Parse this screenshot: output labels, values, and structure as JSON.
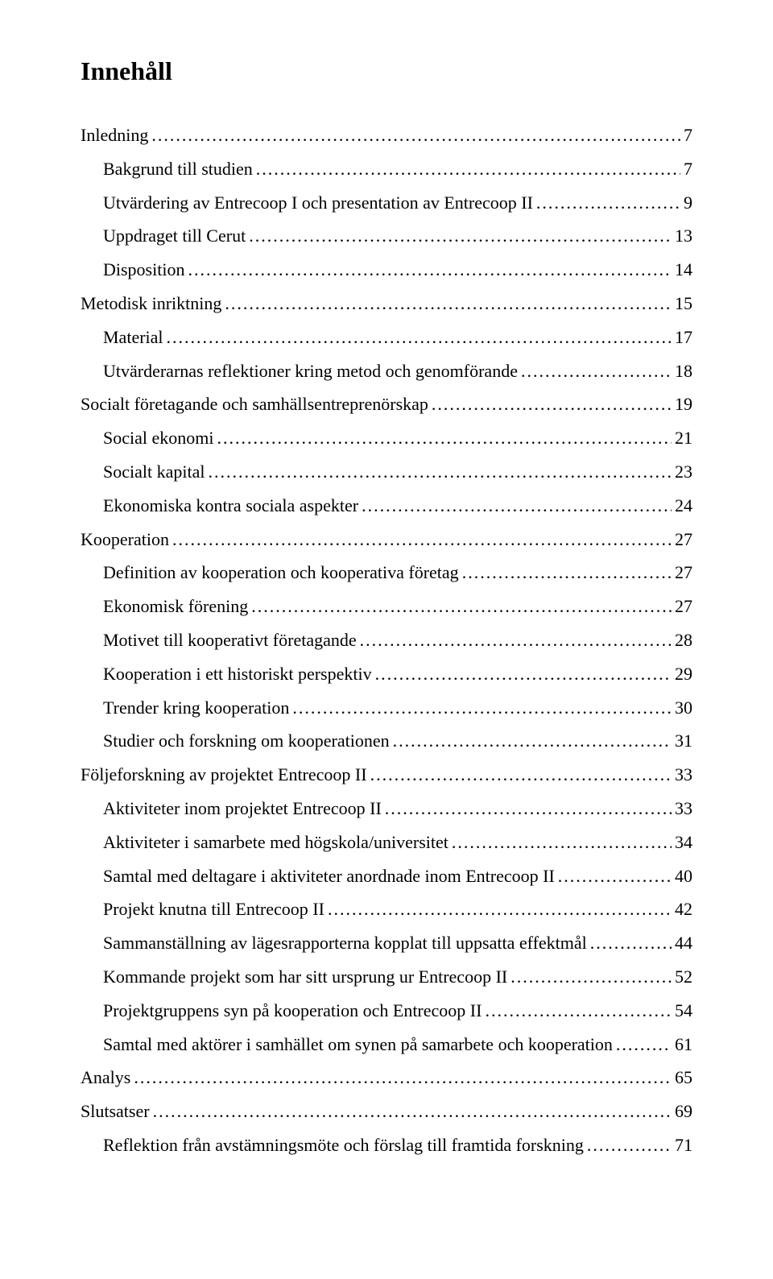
{
  "title": "Innehåll",
  "entries": [
    {
      "level": 0,
      "label": "Inledning",
      "page": "7"
    },
    {
      "level": 1,
      "label": "Bakgrund till studien",
      "page": "7"
    },
    {
      "level": 1,
      "label": "Utvärdering av Entrecoop I och presentation av Entrecoop II",
      "page": "9"
    },
    {
      "level": 1,
      "label": "Uppdraget till Cerut",
      "page": "13"
    },
    {
      "level": 1,
      "label": "Disposition",
      "page": "14"
    },
    {
      "level": 0,
      "label": "Metodisk inriktning",
      "page": "15"
    },
    {
      "level": 1,
      "label": "Material",
      "page": "17"
    },
    {
      "level": 1,
      "label": "Utvärderarnas reflektioner kring metod och genomförande",
      "page": "18"
    },
    {
      "level": 0,
      "label": "Socialt företagande och samhällsentreprenörskap",
      "page": "19"
    },
    {
      "level": 1,
      "label": "Social ekonomi",
      "page": "21"
    },
    {
      "level": 1,
      "label": "Socialt kapital",
      "page": "23"
    },
    {
      "level": 1,
      "label": "Ekonomiska kontra sociala aspekter",
      "page": "24"
    },
    {
      "level": 0,
      "label": "Kooperation",
      "page": "27"
    },
    {
      "level": 1,
      "label": "Definition av kooperation och kooperativa företag",
      "page": "27"
    },
    {
      "level": 1,
      "label": "Ekonomisk förening",
      "page": "27"
    },
    {
      "level": 1,
      "label": "Motivet till kooperativt företagande",
      "page": "28"
    },
    {
      "level": 1,
      "label": "Kooperation i ett historiskt perspektiv",
      "page": "29"
    },
    {
      "level": 1,
      "label": "Trender kring kooperation",
      "page": "30"
    },
    {
      "level": 1,
      "label": "Studier och forskning om kooperationen",
      "page": "31"
    },
    {
      "level": 0,
      "label": "Följeforskning av projektet Entrecoop II",
      "page": "33"
    },
    {
      "level": 1,
      "label": "Aktiviteter inom projektet Entrecoop II",
      "page": "33"
    },
    {
      "level": 1,
      "label": "Aktiviteter i samarbete med högskola/universitet",
      "page": "34"
    },
    {
      "level": 1,
      "label": "Samtal med deltagare i aktiviteter anordnade inom Entrecoop II",
      "page": "40"
    },
    {
      "level": 1,
      "label": "Projekt knutna till Entrecoop II",
      "page": "42"
    },
    {
      "level": 1,
      "label": "Sammanställning av lägesrapporterna kopplat till uppsatta effektmål",
      "page": "44"
    },
    {
      "level": 1,
      "label": "Kommande projekt som har sitt ursprung ur Entrecoop II",
      "page": "52"
    },
    {
      "level": 1,
      "label": "Projektgruppens syn på kooperation och Entrecoop II",
      "page": "54"
    },
    {
      "level": 1,
      "label": "Samtal med aktörer i samhället om synen på samarbete och kooperation",
      "page": "61"
    },
    {
      "level": 0,
      "label": "Analys",
      "page": "65"
    },
    {
      "level": 0,
      "label": "Slutsatser",
      "page": "69"
    },
    {
      "level": 1,
      "label": "Reflektion från avstämningsmöte och förslag till framtida forskning",
      "page": "71"
    }
  ]
}
